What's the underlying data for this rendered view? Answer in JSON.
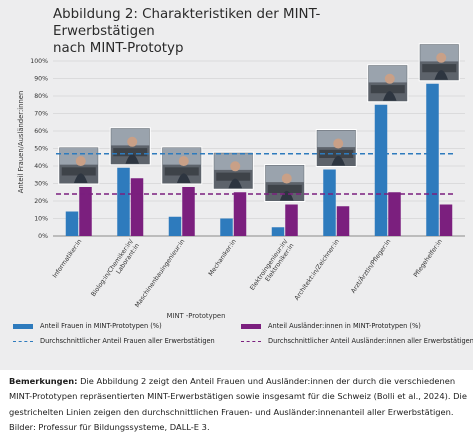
{
  "figure": {
    "title_line1": "Abbildung 2: Charakteristiken der MINT-Erwerbstätigen",
    "title_line2": "nach MINT-Prototyp"
  },
  "chart_data": {
    "type": "bar",
    "xlabel": "MINT -Prototypen",
    "ylabel": "Anteil Frauen/Ausländer:innen",
    "ylim": [
      0,
      100
    ],
    "yticks": [
      "0%",
      "10%",
      "20%",
      "30%",
      "40%",
      "50%",
      "60%",
      "70%",
      "80%",
      "90%",
      "100%"
    ],
    "grid": true,
    "categories": [
      "Informatiker:in",
      "Biolog:in/Chemiker:in/ Laborant:in",
      "Maschinenbauingenieur:in",
      "Mechaniker:in",
      "Elektroingenieur:in/ Elektroniker:in",
      "Architekt:in/Zeichner:in",
      "Arzt/Ärztin/Pfleger:in",
      "Pflegehelfer:in"
    ],
    "series": [
      {
        "name": "Anteil Frauen in MINT-Prototypen (%)",
        "color": "#2e7bbd",
        "values": [
          14,
          39,
          11,
          10,
          5,
          38,
          75,
          87
        ]
      },
      {
        "name": "Anteil Ausländer:innen in MINT-Prototypen (%)",
        "color": "#7b1f7e",
        "values": [
          28,
          33,
          28,
          25,
          18,
          17,
          25,
          18
        ]
      }
    ],
    "reference_lines": [
      {
        "name": "Durchschnittlicher Anteil Frauen aller Erwerbstätigen",
        "value": 47,
        "color": "#2e7bbd"
      },
      {
        "name": "Durchschnittlicher Anteil Ausländer:innen aller Erwerbstätigen",
        "value": 24,
        "color": "#7b1f7e"
      }
    ],
    "legend_position": "bottom"
  },
  "remarks": {
    "label": "Bemerkungen:",
    "text": "Die Abbildung 2 zeigt den Anteil Frauen und Ausländer:innen der durch die verschiedenen MINT-Prototypen repräsentierten MINT-Erwerbstätigen sowie insgesamt für die Schweiz (Bolli et al., 2024). Die gestrichelten Linien zeigen den durchschnittlichen Frauen- und Ausländer:innenanteil aller Erwerbstätigen. Bilder: Professur für Bildungssysteme, DALL-E 3."
  }
}
